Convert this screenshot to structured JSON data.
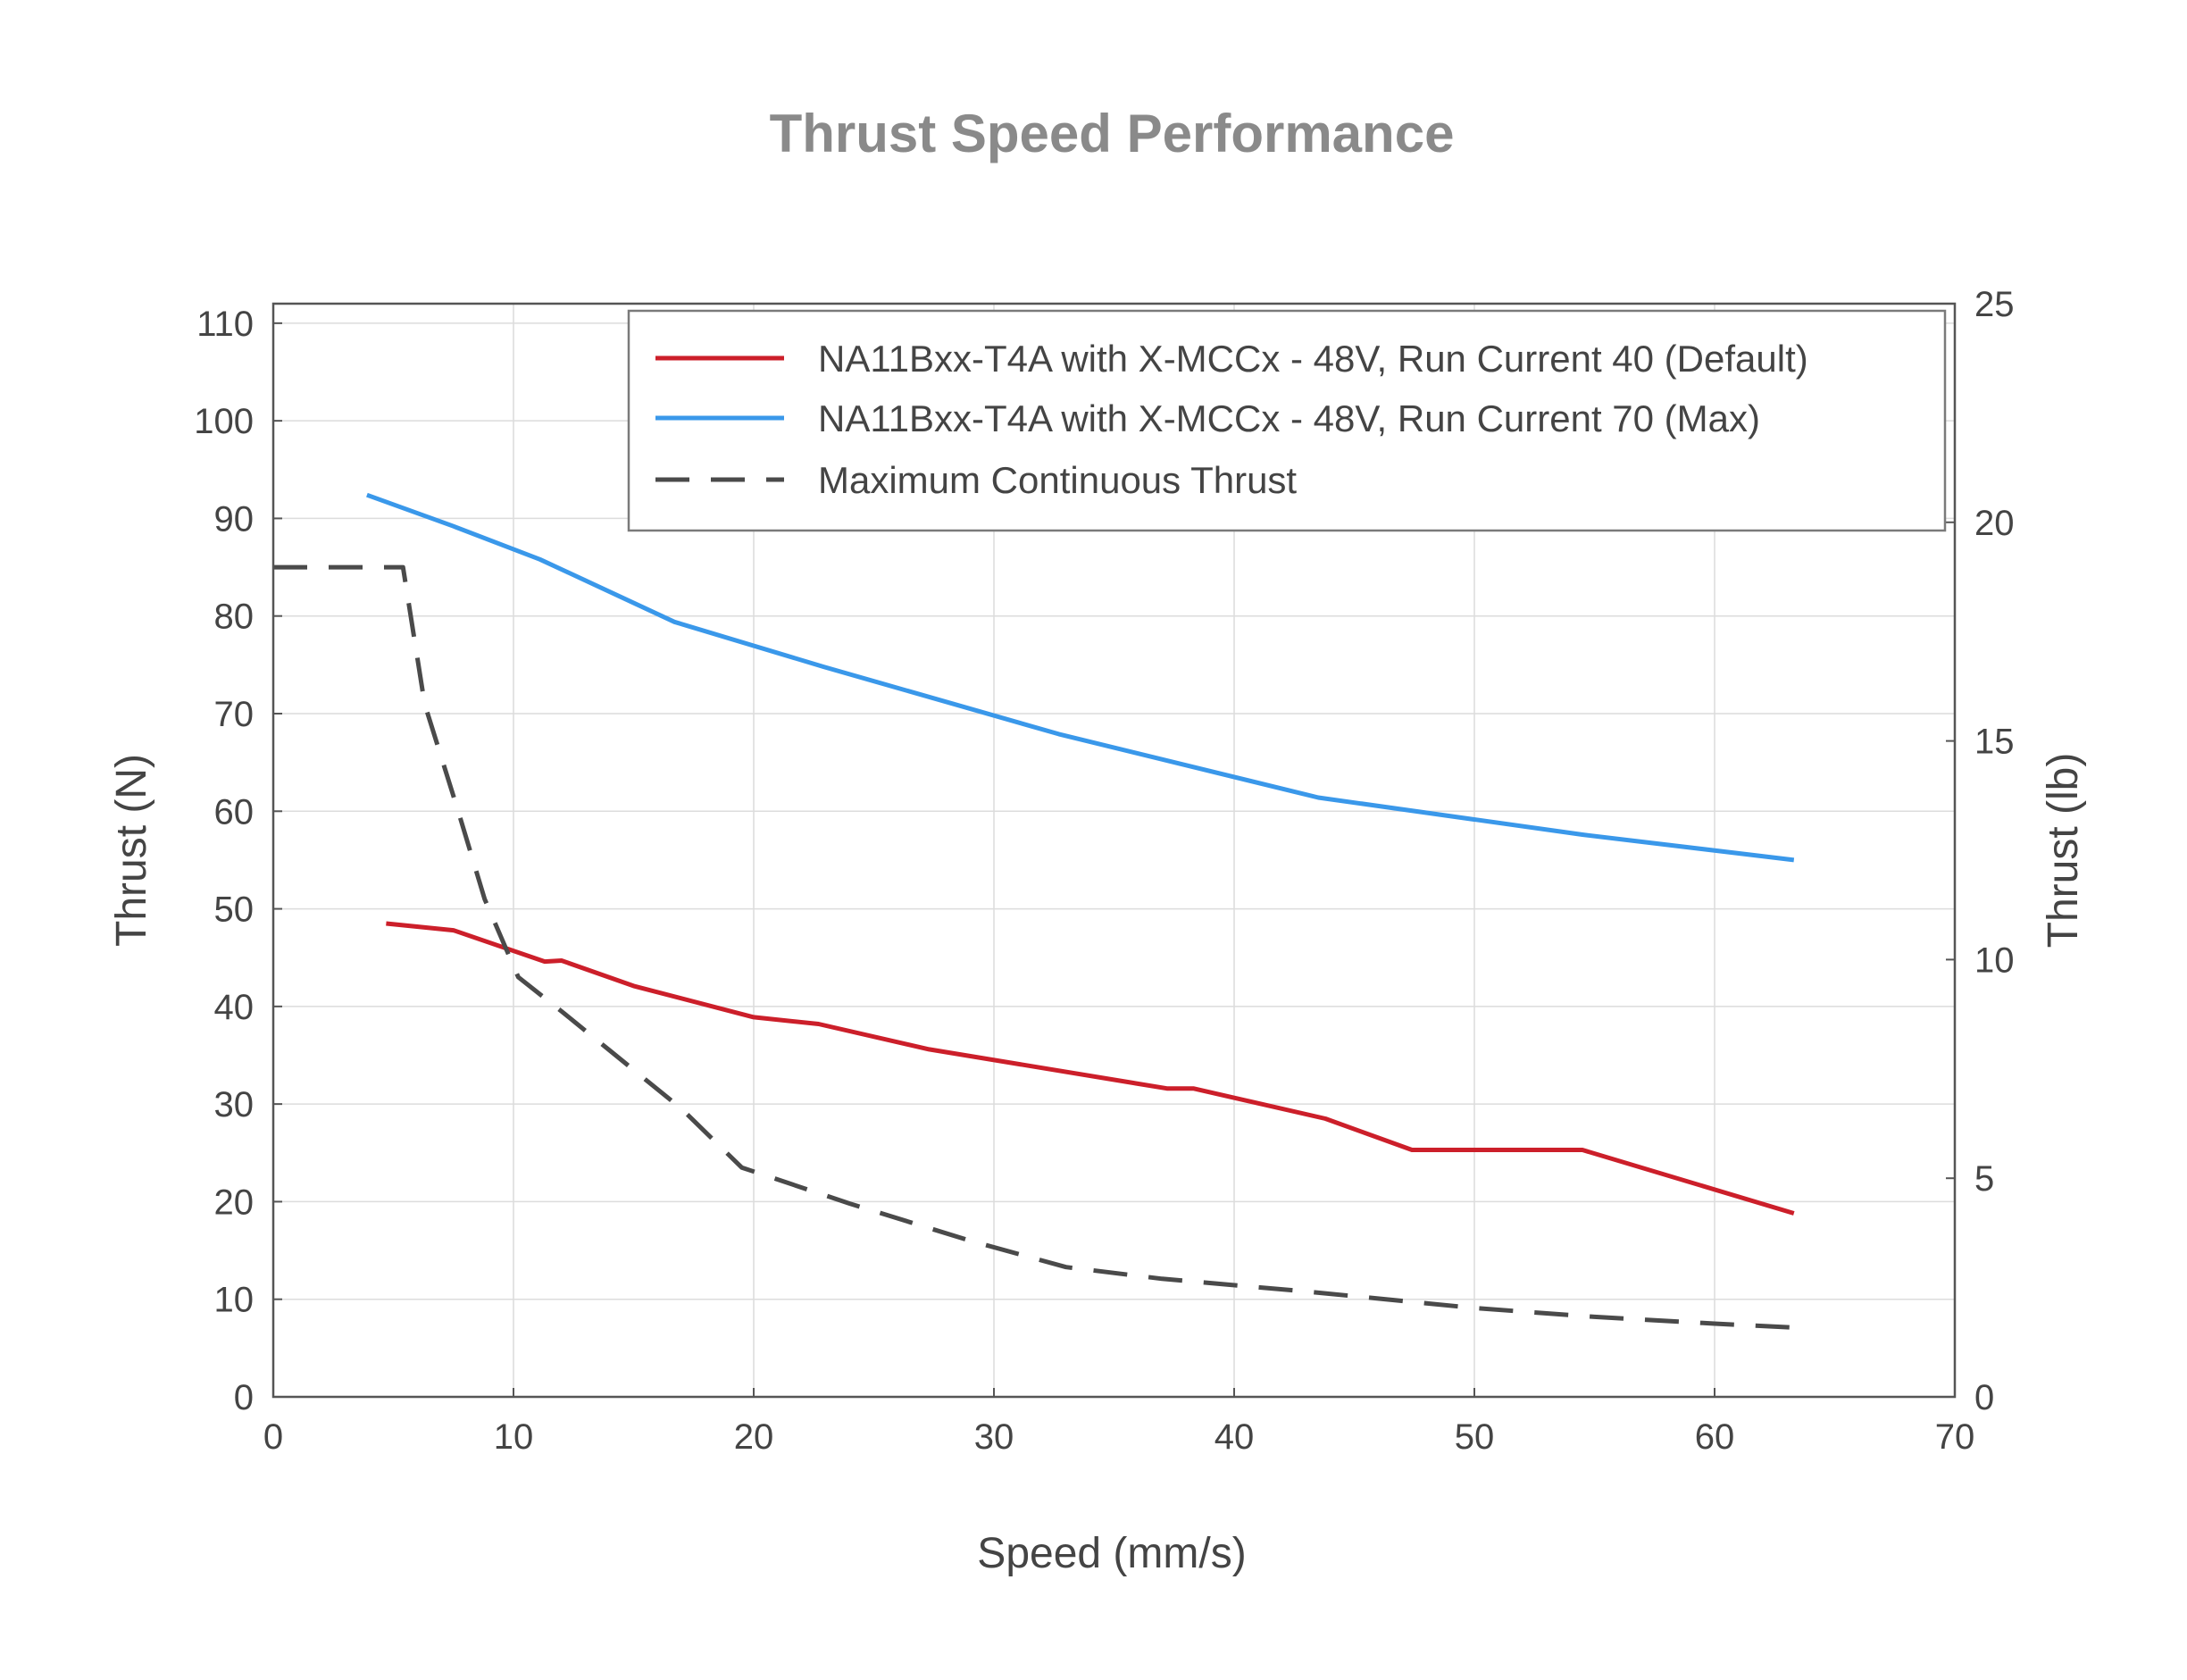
{
  "chart_data": {
    "type": "line",
    "title": "Thrust Speed Performance",
    "xlabel": "Speed (mm/s)",
    "ylabel": "Thrust (N)",
    "y2label": "Thrust (lb)",
    "xlim": [
      0,
      70
    ],
    "ylim": [
      0,
      112
    ],
    "y2lim": [
      0,
      25
    ],
    "x_ticks": [
      0,
      10,
      20,
      30,
      40,
      50,
      60,
      70
    ],
    "y_ticks": [
      0,
      10,
      20,
      30,
      40,
      50,
      60,
      70,
      80,
      90,
      100,
      110
    ],
    "y2_ticks": [
      0,
      5,
      10,
      15,
      20,
      25
    ],
    "grid": true,
    "legend_position": "top-right",
    "series": [
      {
        "name": "NA11Bxx-T4A with X-MCCx - 48V, Run Current 40 (Default)",
        "color": "#cc1f2a",
        "style": "solid",
        "points": [
          [
            4.7,
            48.5
          ],
          [
            7.5,
            47.8
          ],
          [
            11.3,
            44.6
          ],
          [
            12,
            44.7
          ],
          [
            15,
            42.1
          ],
          [
            20,
            38.9
          ],
          [
            22.7,
            38.2
          ],
          [
            27.3,
            35.6
          ],
          [
            37.2,
            31.6
          ],
          [
            38.3,
            31.6
          ],
          [
            43.8,
            28.5
          ],
          [
            47.4,
            25.3
          ],
          [
            54.5,
            25.3
          ],
          [
            63.3,
            18.8
          ]
        ]
      },
      {
        "name": "NA11Bxx-T4A with X-MCCx - 48V, Run Current 70 (Max)",
        "color": "#3a98ea",
        "style": "solid",
        "points": [
          [
            3.9,
            92.4
          ],
          [
            7.5,
            89.2
          ],
          [
            11.1,
            85.8
          ],
          [
            16.7,
            79.4
          ],
          [
            22.9,
            74.8
          ],
          [
            32.7,
            67.9
          ],
          [
            43.5,
            61.4
          ],
          [
            54.5,
            57.6
          ],
          [
            63.3,
            55.0
          ]
        ]
      },
      {
        "name": "Maximum Continuous Thrust",
        "color": "#4a4a4a",
        "style": "dashed",
        "points": [
          [
            0,
            85
          ],
          [
            5.4,
            85
          ],
          [
            6.3,
            71
          ],
          [
            7.7,
            60
          ],
          [
            8.8,
            51
          ],
          [
            10.2,
            43
          ],
          [
            12,
            39.5
          ],
          [
            14,
            35.5
          ],
          [
            17,
            29.5
          ],
          [
            19.5,
            23.5
          ],
          [
            24,
            19.8
          ],
          [
            29,
            16
          ],
          [
            33,
            13.3
          ],
          [
            37,
            12.1
          ],
          [
            43,
            10.8
          ],
          [
            50,
            9.1
          ],
          [
            55,
            8.2
          ],
          [
            60,
            7.5
          ],
          [
            63.3,
            7.1
          ]
        ]
      }
    ]
  }
}
